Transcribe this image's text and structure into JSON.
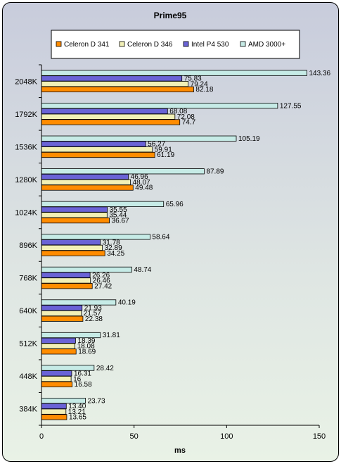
{
  "chart_data": {
    "type": "bar",
    "orientation": "horizontal",
    "title": "Prime95",
    "xlabel": "ms",
    "ylabel": "",
    "xlim": [
      0,
      150
    ],
    "x_ticks": [
      "0",
      "50",
      "100",
      "150"
    ],
    "grid": false,
    "legend": "top",
    "categories": [
      "2048K",
      "1792K",
      "1536K",
      "1280K",
      "1024K",
      "896K",
      "768K",
      "640K",
      "512K",
      "448K",
      "384K"
    ],
    "series": [
      {
        "name": "Celeron D 341",
        "color": "#ff8c00",
        "values": [
          82.18,
          74.7,
          61.19,
          49.48,
          36.67,
          34.25,
          27.42,
          22.38,
          18.69,
          16.58,
          13.65
        ],
        "labels": [
          "82.18",
          "74.7",
          "61.19",
          "49.48",
          "36.67",
          "34.25",
          "27.42",
          "22.38",
          "18.69",
          "16.58",
          "13.65"
        ]
      },
      {
        "name": "Celeron D 346",
        "color": "#f2f0b6",
        "values": [
          79.24,
          72.08,
          59.91,
          48.07,
          35.44,
          32.89,
          26.46,
          21.57,
          18.08,
          16,
          13.21
        ],
        "labels": [
          "79.24",
          "72.08",
          "59.91",
          "48.07",
          "35.44",
          "32.89",
          "26.46",
          "21.57",
          "18.08",
          "16",
          "13.21"
        ]
      },
      {
        "name": "Intel P4 530",
        "color": "#6a63d6",
        "values": [
          75.83,
          68.08,
          56.27,
          46.96,
          35.55,
          31.78,
          26.26,
          21.93,
          18.39,
          16.31,
          13.4
        ],
        "labels": [
          "75.83",
          "68.08",
          "56.27",
          "46.96",
          "35.55",
          "31.78",
          "26.26",
          "21.93",
          "18.39",
          "16.31",
          "13.40"
        ]
      },
      {
        "name": "AMD 3000+",
        "color": "#c6ebe6",
        "values": [
          143.36,
          127.55,
          105.19,
          87.89,
          65.96,
          58.64,
          48.74,
          40.19,
          31.81,
          28.42,
          23.73
        ],
        "labels": [
          "143.36",
          "127.55",
          "105.19",
          "87.89",
          "65.96",
          "58.64",
          "48.74",
          "40.19",
          "31.81",
          "28.42",
          "23.73"
        ]
      }
    ]
  }
}
